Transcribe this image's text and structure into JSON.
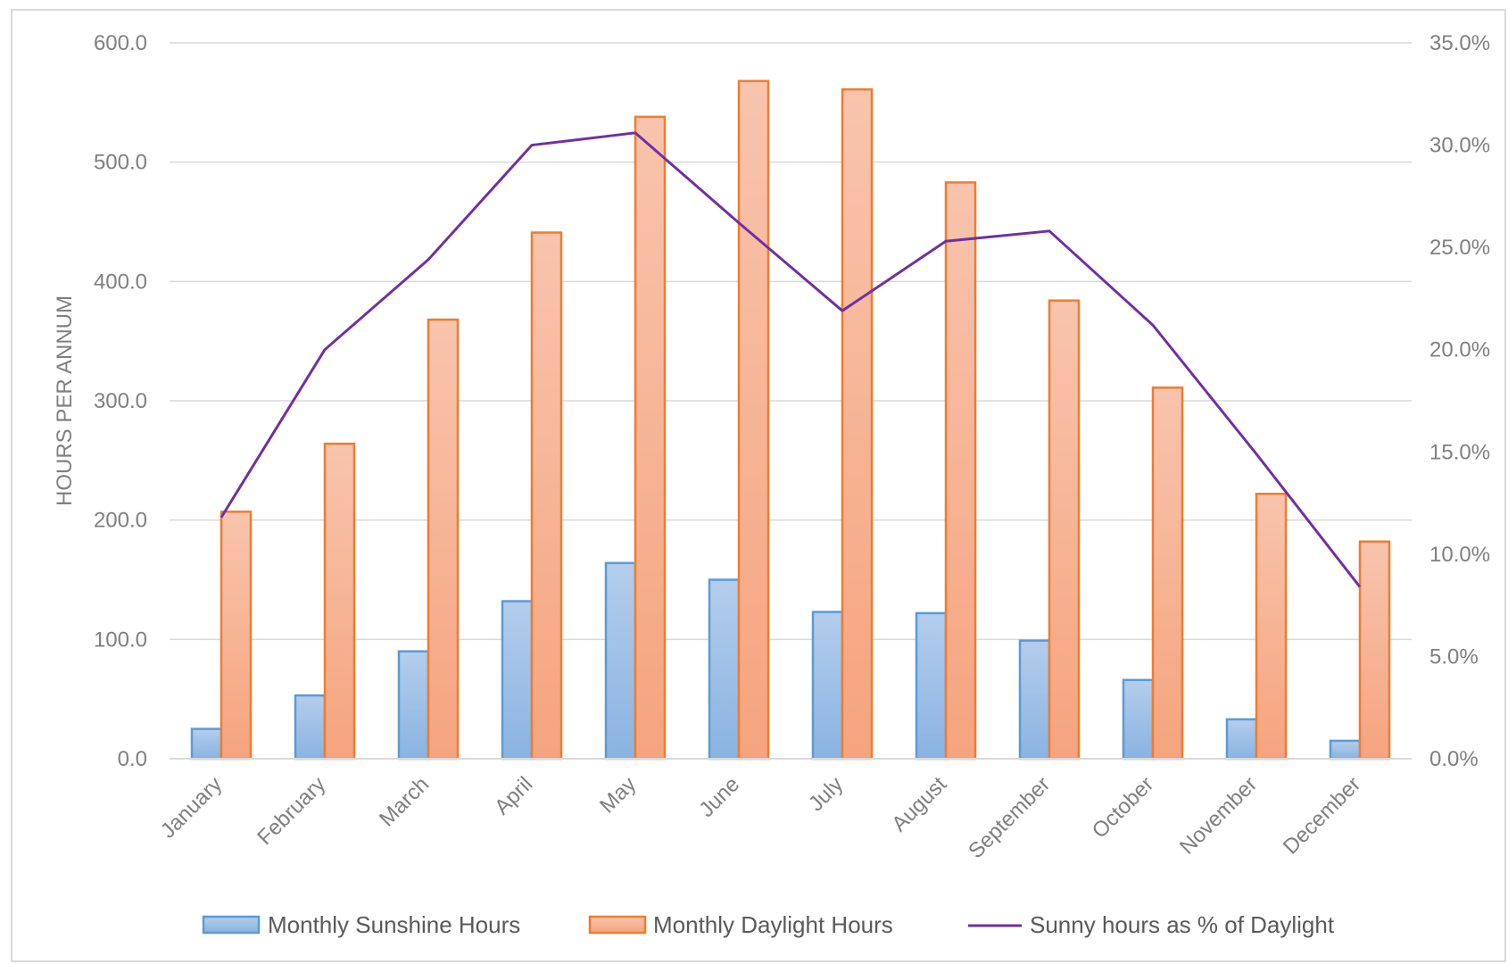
{
  "chart_data": {
    "type": "bar",
    "categories": [
      "January",
      "February",
      "March",
      "April",
      "May",
      "June",
      "July",
      "August",
      "September",
      "October",
      "November",
      "December"
    ],
    "series": [
      {
        "name": "Monthly Sunshine Hours",
        "type": "bar",
        "axis": "left",
        "color": "#5b9bd5",
        "values": [
          25,
          53,
          90,
          132,
          164,
          150,
          123,
          122,
          99,
          66,
          33,
          15
        ]
      },
      {
        "name": "Monthly Daylight Hours",
        "type": "bar",
        "axis": "left",
        "color": "#ed7d31",
        "values": [
          207,
          264,
          368,
          441,
          538,
          568,
          561,
          483,
          384,
          311,
          222,
          182
        ]
      },
      {
        "name": "Sunny hours as % of Daylight",
        "type": "line",
        "axis": "right",
        "color": "#7030a0",
        "values": [
          11.8,
          20.0,
          24.4,
          30.0,
          30.6,
          26.2,
          21.9,
          25.3,
          25.8,
          21.2,
          14.9,
          8.4
        ]
      }
    ],
    "ylabel": "HOURS PER ANNUM",
    "ylim": [
      0,
      600
    ],
    "y_ticks": [
      "0.0",
      "100.0",
      "200.0",
      "300.0",
      "400.0",
      "500.0",
      "600.0"
    ],
    "y2lim": [
      0,
      35
    ],
    "y2_ticks": [
      "0.0%",
      "5.0%",
      "10.0%",
      "15.0%",
      "20.0%",
      "25.0%",
      "30.0%",
      "35.0%"
    ],
    "grid": true,
    "legend_position": "bottom"
  }
}
